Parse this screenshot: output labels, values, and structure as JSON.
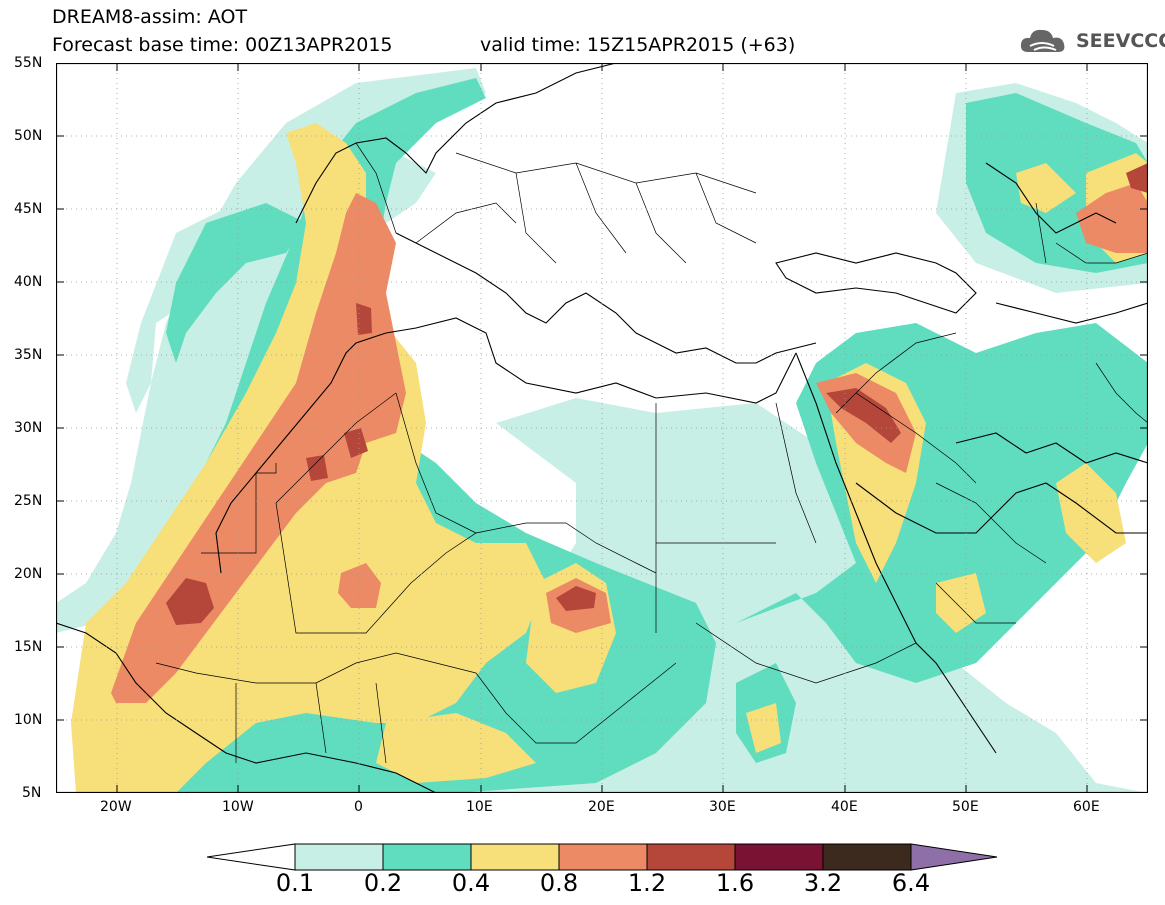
{
  "header": {
    "title_line1": "DREAM8-assim: AOT",
    "title_line2": "Forecast base time: 00Z13APR2015",
    "valid_time": "valid time: 15Z15APR2015 (+63)"
  },
  "logo": {
    "text": "SEEVCCC",
    "icon": "cloud-icon"
  },
  "map": {
    "lat_labels": [
      "55N",
      "50N",
      "45N",
      "40N",
      "35N",
      "30N",
      "25N",
      "20N",
      "15N",
      "10N",
      "5N"
    ],
    "lon_labels": [
      "20W",
      "10W",
      "0",
      "10E",
      "20E",
      "30E",
      "40E",
      "50E",
      "60E"
    ],
    "lon_range": [
      -25,
      65
    ],
    "lat_range": [
      5,
      55
    ],
    "grid_style": "dotted"
  },
  "colorbar": {
    "labels": [
      "0.1",
      "0.2",
      "0.4",
      "0.8",
      "1.2",
      "1.6",
      "3.2",
      "6.4"
    ],
    "colors": [
      "#ffffff",
      "#c8efe6",
      "#5fddbe",
      "#f7df7a",
      "#ec8a66",
      "#b5473a",
      "#7a1233",
      "#3b2a1d",
      "#8f6fa8"
    ]
  },
  "field_colors": {
    "level1": "#c8efe6",
    "level2": "#5fddbe",
    "level3": "#f7df7a",
    "level4": "#ec8a66",
    "level5": "#b5473a"
  }
}
